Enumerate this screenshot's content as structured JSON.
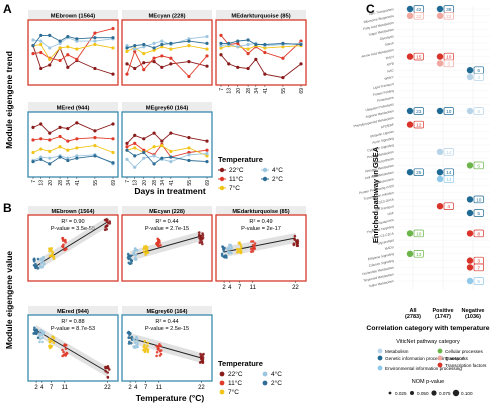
{
  "colors": {
    "t22": "#8b1a1a",
    "t11": "#e03a2a",
    "t7": "#f2c418",
    "t4": "#9cc6df",
    "t2": "#2e6e96",
    "red_frame": "#d43a2a",
    "teal_frame": "#3a8ab0",
    "cat_metabolism": "#b7d3e8",
    "cat_genetic": "#1f6a94",
    "cat_env": "#90c8ea",
    "cat_cellular": "#6bb54a",
    "cat_transport": "#f0a7a0",
    "cat_tf": "#d9332a"
  },
  "panel_letters": {
    "a": "A",
    "b": "B",
    "c": "C"
  },
  "panelA": {
    "ylabel": "Module eigengene trend",
    "xlabel": "Days in treatment",
    "xticks": [
      "7",
      "13",
      "20",
      "28",
      "34",
      "41",
      "55",
      "69"
    ],
    "legend_title": "Temperature",
    "legend": [
      "22°C",
      "11°C",
      "7°C",
      "4°C",
      "2°C"
    ],
    "modules": [
      {
        "title": "MEbrown (1564)",
        "frame": "red",
        "chart_data": {
          "type": "line",
          "x": [
            7,
            13,
            20,
            28,
            34,
            41,
            55,
            69
          ],
          "series": [
            {
              "name": "22°C",
              "values": [
                0.62,
                0.22,
                0.28,
                0.58,
                0.24,
                0.36,
                0.22,
                0.12
              ]
            },
            {
              "name": "11°C",
              "values": [
                0.48,
                0.5,
                0.4,
                0.36,
                0.46,
                0.38,
                0.84,
                0.92
              ]
            },
            {
              "name": "7°C",
              "values": [
                0.62,
                0.64,
                0.38,
                0.58,
                0.6,
                0.56,
                0.64,
                0.58
              ]
            },
            {
              "name": "4°C",
              "values": [
                0.72,
                0.7,
                0.58,
                0.66,
                0.76,
                0.7,
                0.7,
                0.74
              ]
            },
            {
              "name": "2°C",
              "values": [
                0.62,
                0.8,
                0.8,
                0.7,
                0.78,
                0.74,
                0.76,
                0.76
              ]
            }
          ]
        }
      },
      {
        "title": "MEcyan (228)",
        "frame": "red",
        "chart_data": {
          "type": "line",
          "x": [
            7,
            13,
            20,
            28,
            34,
            41,
            55,
            69
          ],
          "series": [
            {
              "name": "22°C",
              "values": [
                0.3,
                0.22,
                0.32,
                0.34,
                0.24,
                0.3,
                0.34,
                0.26
              ]
            },
            {
              "name": "11°C",
              "values": [
                0.12,
                0.52,
                0.2,
                0.4,
                0.44,
                0.4,
                0.08,
                0.44
              ]
            },
            {
              "name": "7°C",
              "values": [
                0.52,
                0.58,
                0.48,
                0.54,
                0.6,
                0.56,
                0.62,
                0.56
              ]
            },
            {
              "name": "4°C",
              "values": [
                0.62,
                0.56,
                0.6,
                0.66,
                0.7,
                0.64,
                0.74,
                0.78
              ]
            },
            {
              "name": "2°C",
              "values": [
                0.58,
                0.62,
                0.64,
                0.58,
                0.64,
                0.66,
                0.7,
                0.66
              ]
            }
          ]
        }
      },
      {
        "title": "MEdarkturquoise (85)",
        "frame": "red",
        "chart_data": {
          "type": "line",
          "x": [
            7,
            13,
            20,
            28,
            34,
            41,
            55,
            69
          ],
          "series": [
            {
              "name": "22°C",
              "values": [
                0.46,
                0.3,
                0.24,
                0.22,
                0.38,
                0.12,
                0.06,
                0.3
              ]
            },
            {
              "name": "11°C",
              "values": [
                0.8,
                0.64,
                0.66,
                0.48,
                0.6,
                0.5,
                0.4,
                0.7
              ]
            },
            {
              "name": "7°C",
              "values": [
                0.58,
                0.62,
                0.6,
                0.56,
                0.62,
                0.58,
                0.6,
                0.62
              ]
            },
            {
              "name": "4°C",
              "values": [
                0.62,
                0.64,
                0.6,
                0.64,
                0.66,
                0.62,
                0.64,
                0.66
              ]
            },
            {
              "name": "2°C",
              "values": [
                0.66,
                0.66,
                0.7,
                0.72,
                0.64,
                0.64,
                0.66,
                0.64
              ]
            }
          ]
        }
      },
      {
        "title": "MEred (944)",
        "frame": "teal",
        "chart_data": {
          "type": "line",
          "x": [
            7,
            13,
            20,
            28,
            34,
            41,
            55,
            69
          ],
          "series": [
            {
              "name": "22°C",
              "values": [
                0.8,
                0.86,
                0.7,
                0.8,
                0.78,
                0.88,
                0.74,
                0.86
              ]
            },
            {
              "name": "11°C",
              "values": [
                0.58,
                0.6,
                0.58,
                0.64,
                0.56,
                0.6,
                0.62,
                0.6
              ]
            },
            {
              "name": "7°C",
              "values": [
                0.36,
                0.42,
                0.38,
                0.46,
                0.4,
                0.44,
                0.48,
                0.36
              ]
            },
            {
              "name": "4°C",
              "values": [
                0.22,
                0.28,
                0.26,
                0.3,
                0.26,
                0.3,
                0.32,
                0.16
              ]
            },
            {
              "name": "2°C",
              "values": [
                0.2,
                0.24,
                0.16,
                0.28,
                0.22,
                0.26,
                0.3,
                0.18
              ]
            }
          ]
        }
      },
      {
        "title": "MEgrey60 (164)",
        "frame": "teal",
        "chart_data": {
          "type": "line",
          "x": [
            7,
            13,
            20,
            28,
            34,
            41,
            55,
            69
          ],
          "series": [
            {
              "name": "22°C",
              "values": [
                0.52,
                0.66,
                0.6,
                0.7,
                0.56,
                0.7,
                0.62,
                0.56
              ]
            },
            {
              "name": "11°C",
              "values": [
                0.46,
                0.52,
                0.4,
                0.32,
                0.5,
                0.28,
                0.36,
                0.4
              ]
            },
            {
              "name": "7°C",
              "values": [
                0.4,
                0.44,
                0.36,
                0.46,
                0.48,
                0.38,
                0.44,
                0.3
              ]
            },
            {
              "name": "4°C",
              "values": [
                0.24,
                0.1,
                0.26,
                0.3,
                0.24,
                0.2,
                0.32,
                0.34
              ]
            },
            {
              "name": "2°C",
              "values": [
                0.4,
                0.3,
                0.36,
                0.16,
                0.26,
                0.28,
                0.22,
                0.2
              ]
            }
          ]
        }
      }
    ]
  },
  "panelB": {
    "ylabel": "Module eigengene value",
    "xlabel": "Temperature (°C)",
    "xticks": [
      "2",
      "4",
      "7",
      "11",
      "22"
    ],
    "legend_title": "Temperature",
    "legend": [
      "22°C",
      "11°C",
      "7°C",
      "4°C",
      "2°C"
    ],
    "modules": [
      {
        "title": "MEbrown (1564)",
        "frame": "red",
        "r2": "R² = 0.90",
        "p": "P-value = 3.5e-55",
        "chart_data": {
          "type": "scatter",
          "x": [
            2,
            4,
            7,
            11,
            22
          ],
          "means": [
            -0.08,
            -0.07,
            -0.03,
            0.02,
            0.12
          ],
          "fit": [
            -0.09,
            0.13
          ]
        }
      },
      {
        "title": "MEcyan (228)",
        "frame": "red",
        "r2": "R² = 0.44",
        "p": "P-value = 2.7e-15",
        "chart_data": {
          "type": "scatter",
          "x": [
            2,
            4,
            7,
            11,
            22
          ],
          "means": [
            -0.05,
            -0.03,
            -0.01,
            0.02,
            0.05
          ],
          "fit": [
            -0.04,
            0.06
          ]
        }
      },
      {
        "title": "MEdarkturquoise (85)",
        "frame": "red",
        "r2": "R² = 0.49",
        "p": "P-value = 2e-17",
        "chart_data": {
          "type": "scatter",
          "x": [
            2,
            4,
            7,
            11,
            22
          ],
          "means": [
            -0.02,
            -0.01,
            0.0,
            0.01,
            0.04
          ],
          "fit": [
            -0.02,
            0.05
          ]
        }
      },
      {
        "title": "MEred (944)",
        "frame": "teal",
        "r2": "R² = 0.88",
        "p": "P-value = 8.7e-53",
        "chart_data": {
          "type": "scatter",
          "x": [
            2,
            4,
            7,
            11,
            22
          ],
          "means": [
            0.08,
            0.06,
            0.03,
            -0.01,
            -0.12
          ],
          "fit": [
            0.09,
            -0.12
          ]
        }
      },
      {
        "title": "MEgrey60 (164)",
        "frame": "teal",
        "r2": "R² = 0.44",
        "p": "P-value = 2.5e-15",
        "chart_data": {
          "type": "scatter",
          "x": [
            2,
            4,
            7,
            11,
            22
          ],
          "means": [
            0.05,
            0.03,
            0.01,
            -0.01,
            -0.05
          ],
          "fit": [
            0.05,
            -0.05
          ]
        }
      }
    ]
  },
  "panelC": {
    "ylabel": "Enriched pathway in GSEA",
    "xlabel": "Correlation category with temperature",
    "columns": [
      "All\n(2783)",
      "Positive\n(1747)",
      "Negative\n(1036)"
    ],
    "legend_title": "ViticNet pathway category",
    "categories": [
      "Metabolism",
      "Genetic information processing networks",
      "Environmental information processing",
      "Cellular processes",
      "Transport",
      "Transcription factors"
    ],
    "size_title": "NOM p-value",
    "size_ticks": [
      "0.025",
      "0.050",
      "0.075",
      "0.100"
    ],
    "chart_data": {
      "type": "table",
      "rows": [
        {
          "col": 0,
          "row": 0,
          "label": "42",
          "cat": "cat_genetic"
        },
        {
          "col": 0,
          "row": 1,
          "label": "22",
          "cat": "cat_transport"
        },
        {
          "col": 1,
          "row": 0,
          "label": "38",
          "cat": "cat_genetic"
        },
        {
          "col": 1,
          "row": 1,
          "label": "22",
          "cat": "cat_transport"
        },
        {
          "col": 0,
          "row": 7,
          "label": "15",
          "cat": "cat_tf"
        },
        {
          "col": 1,
          "row": 7,
          "label": "10",
          "cat": "cat_tf"
        },
        {
          "col": 1,
          "row": 8,
          "label": "3",
          "cat": "cat_transport"
        },
        {
          "col": 2,
          "row": 9,
          "label": "6",
          "cat": "cat_genetic"
        },
        {
          "col": 2,
          "row": 10,
          "label": "4",
          "cat": "cat_metabolism"
        },
        {
          "col": 0,
          "row": 15,
          "label": "23",
          "cat": "cat_genetic"
        },
        {
          "col": 1,
          "row": 15,
          "label": "10",
          "cat": "cat_genetic"
        },
        {
          "col": 2,
          "row": 15,
          "label": "8",
          "cat": "cat_metabolism"
        },
        {
          "col": 0,
          "row": 17,
          "label": "12",
          "cat": "cat_tf"
        },
        {
          "col": 1,
          "row": 21,
          "label": "14",
          "cat": "cat_metabolism"
        },
        {
          "col": 0,
          "row": 24,
          "label": "25",
          "cat": "cat_genetic"
        },
        {
          "col": 1,
          "row": 24,
          "label": "14",
          "cat": "cat_genetic"
        },
        {
          "col": 1,
          "row": 25,
          "label": "14",
          "cat": "cat_env"
        },
        {
          "col": 2,
          "row": 23,
          "label": "5",
          "cat": "cat_cellular"
        },
        {
          "col": 2,
          "row": 28,
          "label": "10",
          "cat": "cat_genetic"
        },
        {
          "col": 1,
          "row": 29,
          "label": "4",
          "cat": "cat_tf"
        },
        {
          "col": 2,
          "row": 30,
          "label": "5",
          "cat": "cat_genetic"
        },
        {
          "col": 0,
          "row": 33,
          "label": "10",
          "cat": "cat_cellular"
        },
        {
          "col": 2,
          "row": 33,
          "label": "8",
          "cat": "cat_tf"
        },
        {
          "col": 0,
          "row": 36,
          "label": "13",
          "cat": "cat_cellular"
        },
        {
          "col": 2,
          "row": 37,
          "label": "3",
          "cat": "cat_tf"
        },
        {
          "col": 2,
          "row": 38,
          "label": "7",
          "cat": "cat_tf"
        },
        {
          "col": 2,
          "row": 40,
          "label": "5",
          "cat": "cat_env"
        }
      ]
    },
    "pathways": [
      "ABC Transporters",
      "Ribosome Biogenesis",
      "Fatty Acid Metabolism",
      "Sugar Metabolism",
      "Glycolysis",
      "Starch",
      "Amino Acid Metabolism",
      "bHLH",
      "MYB",
      "NAC",
      "WRKY",
      "Lipid Transport",
      "Protein Folding",
      "Proteasome",
      "Ubiquitin Proteolysis",
      "Arginine Metabolism",
      "Phenylpropanoid Metabolism",
      "AP2/ERF",
      "Ubiquitin Ligases",
      "Auxin Signaling",
      "Cytokinin Signaling",
      "Proline Metabolism",
      "Photosynthesis",
      "Nitrogen Metabolism",
      "Cell Wall Metabolism",
      "Spliceosome",
      "Protein Processing in ER",
      "Transcription Initiation",
      "C2C2-GATA",
      "Ion Transport",
      "HSF",
      "Aquaporins",
      "Thylakoid Targeting",
      "Other C2-C2CA",
      "Glycerolipid",
      "MADS",
      "Ethylene Signaling",
      "Calcium Signaling",
      "Nucleotide Metabolism",
      "Terpenoid Metabolism",
      "Sulfur Metabolism"
    ]
  }
}
